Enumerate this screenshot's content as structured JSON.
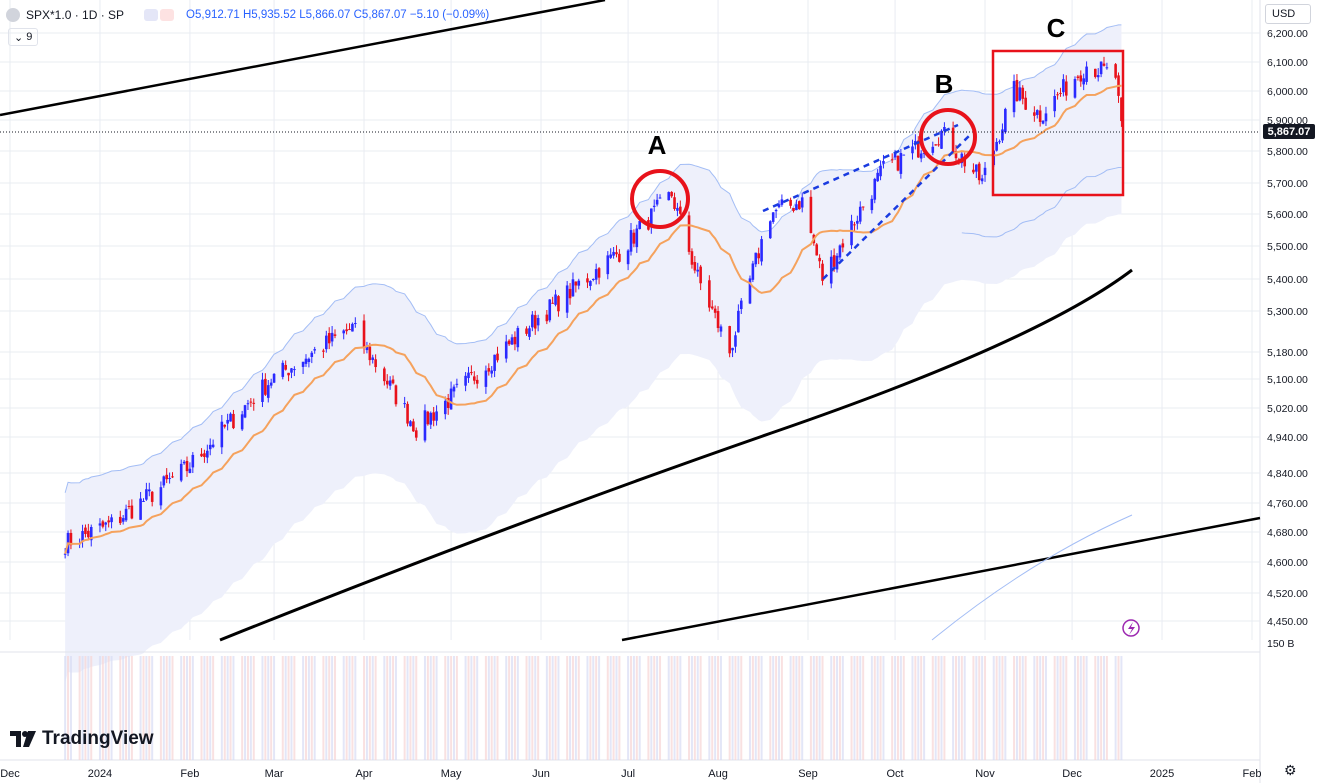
{
  "header": {
    "symbol": "SPX*1.0 · 1D · SP",
    "open": "O5,912.71",
    "high": "H5,935.52",
    "low": "L5,866.07",
    "close": "C5,867.07",
    "change": "−5.10 (−0.09%)",
    "sub_count": "9",
    "currency": "USD",
    "last_price": "5,867.07"
  },
  "logo": {
    "text": "TradingView"
  },
  "annotations": [
    {
      "label": "A",
      "shape": "circle",
      "color": "#e8121b"
    },
    {
      "label": "B",
      "shape": "circle",
      "color": "#e8121b"
    },
    {
      "label": "C",
      "shape": "rectangle",
      "color": "#e8121b"
    }
  ],
  "colors": {
    "candle": "#2a2aff",
    "candle_down": "#e8121b",
    "ma_fast": "#f5a25d",
    "envelope": "#a3bdf5",
    "long_ma": "#000000",
    "trendline": "#000000",
    "wedge": "#1a3be0",
    "grid": "#e9ecf2"
  },
  "chart_data": {
    "type": "candlestick",
    "x_tick_labels": [
      "Dec",
      "2024",
      "Feb",
      "Mar",
      "Apr",
      "May",
      "Jun",
      "Jul",
      "Aug",
      "Sep",
      "Oct",
      "Nov",
      "Dec",
      "2025",
      "Feb"
    ],
    "y_tick_labels": [
      "6,200.00",
      "6,100.00",
      "6,000.00",
      "5,900.00",
      "5,800.00",
      "5,700.00",
      "5,600.00",
      "5,500.00",
      "5,400.00",
      "5,300.00",
      "5,180.00",
      "5,100.00",
      "5,020.00",
      "4,940.00",
      "4,840.00",
      "4,760.00",
      "4,680.00",
      "4,600.00",
      "4,520.00",
      "4,450.00",
      "150 B"
    ],
    "y_scale": "log",
    "close_path": [
      {
        "x": "2023-12-20",
        "y": 4650
      },
      {
        "x": "2024-01-05",
        "y": 4700
      },
      {
        "x": "2024-01-31",
        "y": 4850
      },
      {
        "x": "2024-02-29",
        "y": 5100
      },
      {
        "x": "2024-03-28",
        "y": 5250
      },
      {
        "x": "2024-04-19",
        "y": 4960
      },
      {
        "x": "2024-04-30",
        "y": 5040
      },
      {
        "x": "2024-05-31",
        "y": 5280
      },
      {
        "x": "2024-06-28",
        "y": 5480
      },
      {
        "x": "2024-07-16",
        "y": 5660
      },
      {
        "x": "2024-07-25",
        "y": 5400
      },
      {
        "x": "2024-08-05",
        "y": 5180
      },
      {
        "x": "2024-08-19",
        "y": 5600
      },
      {
        "x": "2024-08-30",
        "y": 5640
      },
      {
        "x": "2024-09-06",
        "y": 5400
      },
      {
        "x": "2024-09-27",
        "y": 5740
      },
      {
        "x": "2024-10-17",
        "y": 5860
      },
      {
        "x": "2024-10-31",
        "y": 5700
      },
      {
        "x": "2024-11-11",
        "y": 6000
      },
      {
        "x": "2024-11-20",
        "y": 5920
      },
      {
        "x": "2024-12-06",
        "y": 6090
      },
      {
        "x": "2024-12-16",
        "y": 6050
      },
      {
        "x": "2024-12-18",
        "y": 5867
      }
    ]
  }
}
